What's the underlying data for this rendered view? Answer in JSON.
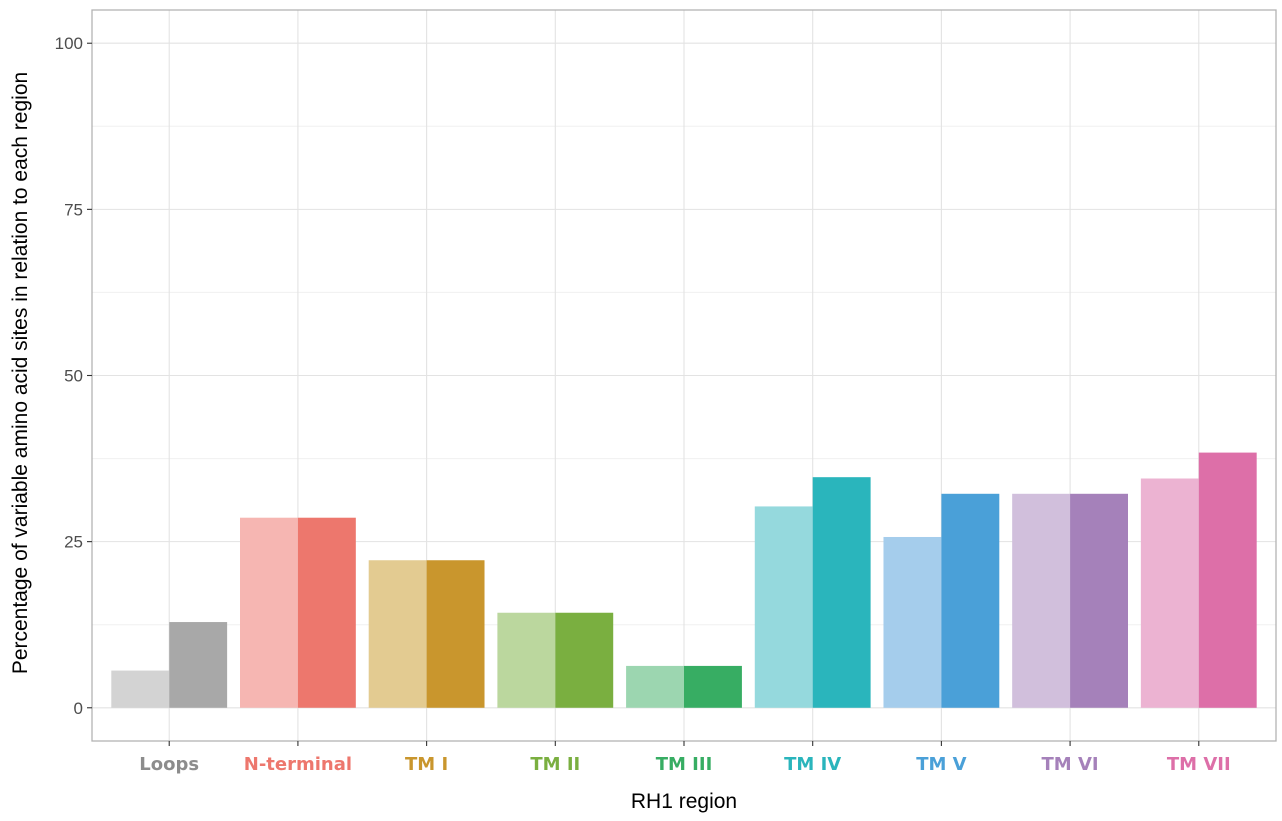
{
  "chart_data": {
    "type": "bar",
    "title": "",
    "xlabel": "RH1 region",
    "ylabel": "Percentage of variable amino acid sites in relation to each region",
    "ylim": [
      -5,
      105
    ],
    "yticks": [
      0,
      25,
      50,
      75,
      100
    ],
    "ytick_labels": [
      "0",
      "25",
      "50",
      "75",
      "100"
    ],
    "grid": true,
    "legend": "none",
    "categories": [
      "Loops",
      "N-terminal",
      "TM I",
      "TM II",
      "TM III",
      "TM IV",
      "TM V",
      "TM VI",
      "TM VII"
    ],
    "category_colors": [
      "#8c8c8c",
      "#ed776d",
      "#c9962d",
      "#7aaf40",
      "#37ad63",
      "#2ab5bc",
      "#4aa0d8",
      "#a581ba",
      "#dd6fa8"
    ],
    "series": [
      {
        "values": [
          5.6,
          28.6,
          22.2,
          14.3,
          6.3,
          30.3,
          25.7,
          32.2,
          34.5
        ],
        "colors": [
          "#d3d3d3",
          "#f6b6b2",
          "#e3cb91",
          "#bbd79e",
          "#9cd6b0",
          "#95d9dd",
          "#a5cdec",
          "#d1bfdc",
          "#ecb3d2"
        ]
      },
      {
        "values": [
          12.9,
          28.6,
          22.2,
          14.3,
          6.3,
          34.7,
          32.2,
          32.2,
          38.4
        ],
        "colors": [
          "#a8a8a8",
          "#ed776d",
          "#c9962d",
          "#7aaf40",
          "#37ad63",
          "#2ab5bc",
          "#4aa0d8",
          "#a581ba",
          "#dd6fa8"
        ]
      }
    ]
  }
}
